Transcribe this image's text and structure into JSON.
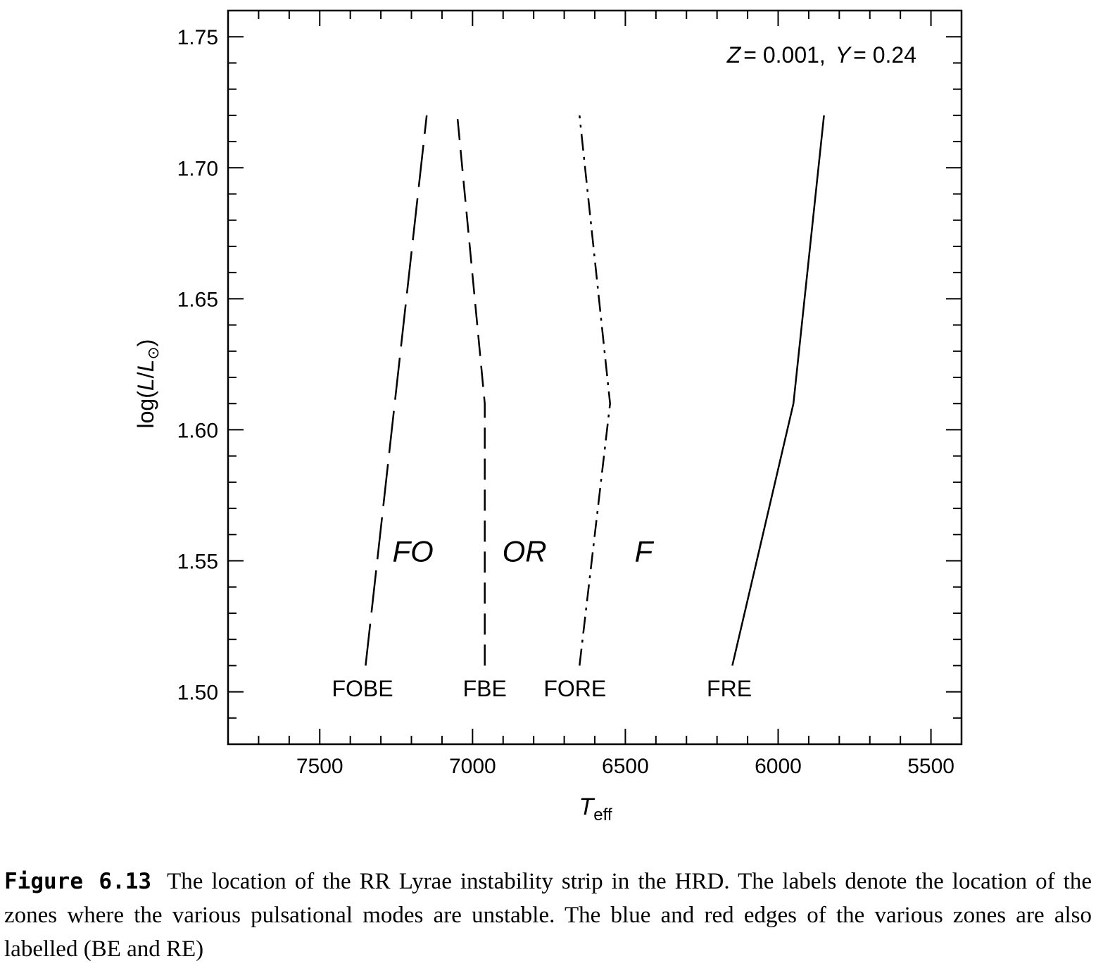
{
  "chart_data": {
    "type": "line",
    "title": "",
    "annotation": {
      "Z_sym": "Z",
      "Z_val": "= 0.001,",
      "Y_sym": "Y",
      "Y_val": "= 0.24"
    },
    "xlabel": {
      "sym": "T",
      "sub": "eff"
    },
    "ylabel": {
      "pre": "log(",
      "L1": "L",
      "slash": "/",
      "L2": "L",
      "sub": "⊙",
      "post": ")"
    },
    "xlim": [
      7800,
      5400
    ],
    "ylim": [
      1.48,
      1.76
    ],
    "x_ticks": [
      7500,
      7000,
      6500,
      6000,
      5500
    ],
    "x_tick_labels": [
      "7500",
      "7000",
      "6500",
      "6000",
      "5500"
    ],
    "y_ticks": [
      1.5,
      1.55,
      1.6,
      1.65,
      1.7,
      1.75
    ],
    "y_tick_labels": [
      "1.50",
      "1.55",
      "1.60",
      "1.65",
      "1.70",
      "1.75"
    ],
    "series": [
      {
        "label": "FOBE",
        "style": "long-dash",
        "x": [
          7350,
          7150
        ],
        "y": [
          1.51,
          1.72
        ]
      },
      {
        "label": "FBE",
        "style": "dash",
        "x": [
          6960,
          6960,
          7050
        ],
        "y": [
          1.51,
          1.61,
          1.72
        ]
      },
      {
        "label": "FORE",
        "style": "dash-dot",
        "x": [
          6650,
          6550,
          6650
        ],
        "y": [
          1.51,
          1.61,
          1.72
        ]
      },
      {
        "label": "FRE",
        "style": "solid",
        "x": [
          6150,
          5950,
          5850
        ],
        "y": [
          1.51,
          1.61,
          1.72
        ]
      }
    ],
    "edge_labels": [
      {
        "text": "FOBE",
        "x": 7360,
        "y": 1.502
      },
      {
        "text": "FBE",
        "x": 6960,
        "y": 1.502
      },
      {
        "text": "FORE",
        "x": 6665,
        "y": 1.502
      },
      {
        "text": "FRE",
        "x": 6160,
        "y": 1.502
      }
    ],
    "zone_labels": [
      {
        "text": "FO",
        "x": 7195,
        "y": 1.554
      },
      {
        "text": "OR",
        "x": 6830,
        "y": 1.554
      },
      {
        "text": "F",
        "x": 6440,
        "y": 1.554
      }
    ]
  },
  "caption": {
    "label": "Figure 6.13",
    "text": "The location of the RR Lyrae instability strip in the HRD. The labels denote the location of the zones where the various pulsational modes are unstable. The blue and red edges of the various zones are also labelled (BE and RE)"
  }
}
